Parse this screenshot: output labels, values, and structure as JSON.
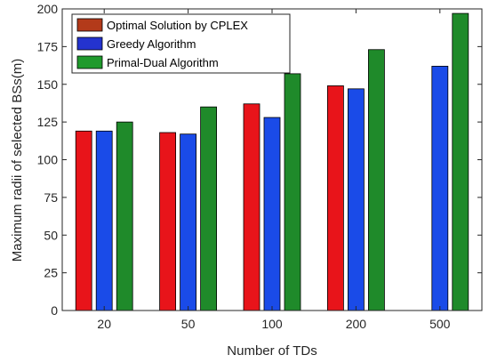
{
  "chart_data": {
    "type": "bar",
    "categories": [
      "20",
      "50",
      "100",
      "200",
      "500"
    ],
    "series": [
      {
        "name": "Optimal Solution by CPLEX",
        "color": "#e8141a",
        "legend_swatch_color": "#b33a1a",
        "values": [
          119,
          118,
          137,
          149,
          null
        ]
      },
      {
        "name": "Greedy Algorithm",
        "color": "#1a4be8",
        "legend_swatch_color": "#2433cf",
        "values": [
          119,
          117,
          128,
          147,
          162
        ]
      },
      {
        "name": "Primal-Dual Algorithm",
        "color": "#1f8a2a",
        "legend_swatch_color": "#1f9a2c",
        "values": [
          125,
          135,
          157,
          173,
          197
        ]
      }
    ],
    "xlabel": "Number of TDs",
    "ylabel": "Maximum radii of selected BSs(m)",
    "ylim": [
      0,
      200
    ],
    "yticks": [
      0,
      25,
      50,
      75,
      100,
      125,
      150,
      175,
      200
    ],
    "grid": false,
    "legend_position": "top-left"
  }
}
